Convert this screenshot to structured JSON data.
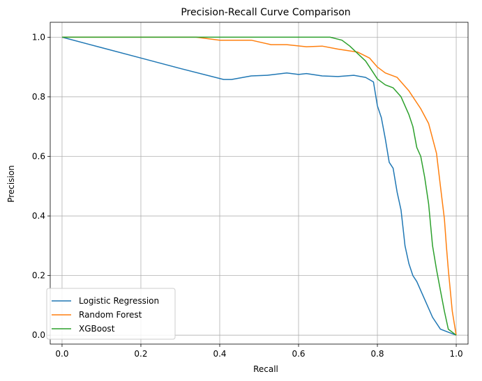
{
  "chart_data": {
    "type": "line",
    "title": "Precision-Recall Curve Comparison",
    "xlabel": "Recall",
    "ylabel": "Precision",
    "xlim": [
      -0.03,
      1.03
    ],
    "ylim": [
      -0.03,
      1.05
    ],
    "xticks": [
      0.0,
      0.2,
      0.4,
      0.6,
      0.8,
      1.0
    ],
    "yticks": [
      0.0,
      0.2,
      0.4,
      0.6,
      0.8,
      1.0
    ],
    "xtick_labels": [
      "0.0",
      "0.2",
      "0.4",
      "0.6",
      "0.8",
      "1.0"
    ],
    "ytick_labels": [
      "0.0",
      "0.2",
      "0.4",
      "0.6",
      "0.8",
      "1.0"
    ],
    "grid": true,
    "legend_position": "lower-left",
    "series": [
      {
        "name": "Logistic Regression",
        "color": "#1f77b4",
        "x": [
          0.0,
          0.1,
          0.2,
          0.3,
          0.41,
          0.43,
          0.48,
          0.52,
          0.57,
          0.6,
          0.62,
          0.66,
          0.7,
          0.74,
          0.77,
          0.79,
          0.8,
          0.81,
          0.82,
          0.83,
          0.84,
          0.85,
          0.86,
          0.865,
          0.87,
          0.88,
          0.89,
          0.9,
          0.92,
          0.94,
          0.96,
          0.98,
          1.0
        ],
        "y": [
          1.0,
          0.965,
          0.93,
          0.895,
          0.858,
          0.858,
          0.87,
          0.872,
          0.88,
          0.875,
          0.878,
          0.87,
          0.868,
          0.872,
          0.865,
          0.85,
          0.77,
          0.73,
          0.66,
          0.58,
          0.56,
          0.48,
          0.42,
          0.36,
          0.3,
          0.24,
          0.2,
          0.18,
          0.12,
          0.06,
          0.02,
          0.01,
          0.0
        ]
      },
      {
        "name": "Random Forest",
        "color": "#ff7f0e",
        "x": [
          0.0,
          0.2,
          0.34,
          0.4,
          0.48,
          0.53,
          0.57,
          0.62,
          0.66,
          0.7,
          0.75,
          0.78,
          0.8,
          0.82,
          0.85,
          0.88,
          0.9,
          0.91,
          0.93,
          0.95,
          0.96,
          0.97,
          0.975,
          0.98,
          0.99,
          1.0
        ],
        "y": [
          1.0,
          1.0,
          1.0,
          0.99,
          0.99,
          0.975,
          0.975,
          0.968,
          0.97,
          0.96,
          0.95,
          0.93,
          0.9,
          0.88,
          0.865,
          0.82,
          0.78,
          0.76,
          0.71,
          0.61,
          0.5,
          0.39,
          0.3,
          0.22,
          0.08,
          0.0
        ]
      },
      {
        "name": "XGBoost",
        "color": "#2ca02c",
        "x": [
          0.0,
          0.2,
          0.4,
          0.6,
          0.68,
          0.71,
          0.73,
          0.75,
          0.77,
          0.79,
          0.8,
          0.82,
          0.84,
          0.86,
          0.88,
          0.89,
          0.9,
          0.91,
          0.92,
          0.93,
          0.935,
          0.94,
          0.95,
          0.96,
          0.97,
          0.98,
          1.0
        ],
        "y": [
          1.0,
          1.0,
          1.0,
          1.0,
          1.0,
          0.99,
          0.97,
          0.945,
          0.92,
          0.88,
          0.86,
          0.84,
          0.83,
          0.8,
          0.74,
          0.7,
          0.63,
          0.6,
          0.53,
          0.44,
          0.37,
          0.3,
          0.22,
          0.15,
          0.08,
          0.02,
          0.0
        ]
      }
    ]
  }
}
